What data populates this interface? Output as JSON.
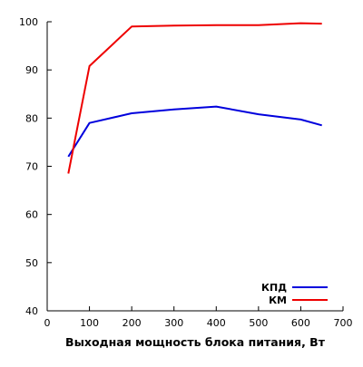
{
  "chart_data": {
    "type": "line",
    "title": "",
    "xlabel": "Выходная мощность блока питания, Вт",
    "ylabel": "",
    "xlim": [
      0,
      700
    ],
    "ylim": [
      40,
      100
    ],
    "x_ticks": [
      0,
      100,
      200,
      300,
      400,
      500,
      600,
      700
    ],
    "y_ticks": [
      40,
      50,
      60,
      70,
      80,
      90,
      100
    ],
    "grid": false,
    "legend_position": "bottom-right",
    "series": [
      {
        "name": "КПД",
        "color": "#0000dd",
        "points": [
          {
            "x": 50,
            "y": 72
          },
          {
            "x": 100,
            "y": 79
          },
          {
            "x": 200,
            "y": 81
          },
          {
            "x": 300,
            "y": 81.8
          },
          {
            "x": 400,
            "y": 82.4
          },
          {
            "x": 500,
            "y": 80.8
          },
          {
            "x": 600,
            "y": 79.7
          },
          {
            "x": 650,
            "y": 78.5
          }
        ]
      },
      {
        "name": "КМ",
        "color": "#ee0000",
        "points": [
          {
            "x": 50,
            "y": 68.5
          },
          {
            "x": 100,
            "y": 90.8
          },
          {
            "x": 200,
            "y": 99
          },
          {
            "x": 300,
            "y": 99.2
          },
          {
            "x": 400,
            "y": 99.3
          },
          {
            "x": 500,
            "y": 99.3
          },
          {
            "x": 600,
            "y": 99.7
          },
          {
            "x": 650,
            "y": 99.6
          }
        ]
      }
    ]
  }
}
